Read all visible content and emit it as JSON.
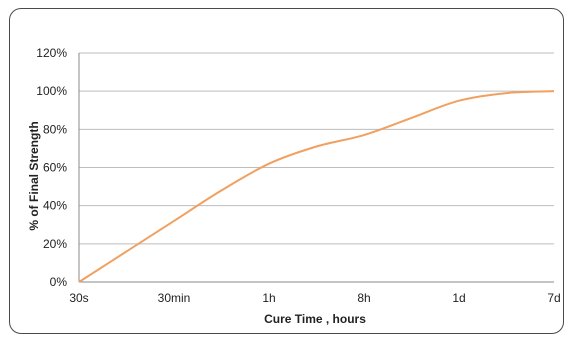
{
  "chart_data": {
    "type": "line",
    "title": "",
    "xlabel": "Cure Time , hours",
    "ylabel": "% of Final Strength",
    "categories": [
      "30s",
      "30min",
      "1h",
      "8h",
      "1d",
      "7d"
    ],
    "yticks": [
      "0%",
      "20%",
      "40%",
      "60%",
      "80%",
      "100%",
      "120%"
    ],
    "ylim": [
      0,
      120
    ],
    "grid": true,
    "legend": "none",
    "line_color": "#f0a060",
    "series": [
      {
        "x": [
          0,
          0.5,
          1,
          1.5,
          2,
          2.5,
          3,
          3.5,
          4,
          4.5,
          5
        ],
        "values": [
          0,
          16,
          32,
          48,
          62,
          71,
          77,
          86,
          95,
          99,
          100
        ]
      }
    ]
  }
}
